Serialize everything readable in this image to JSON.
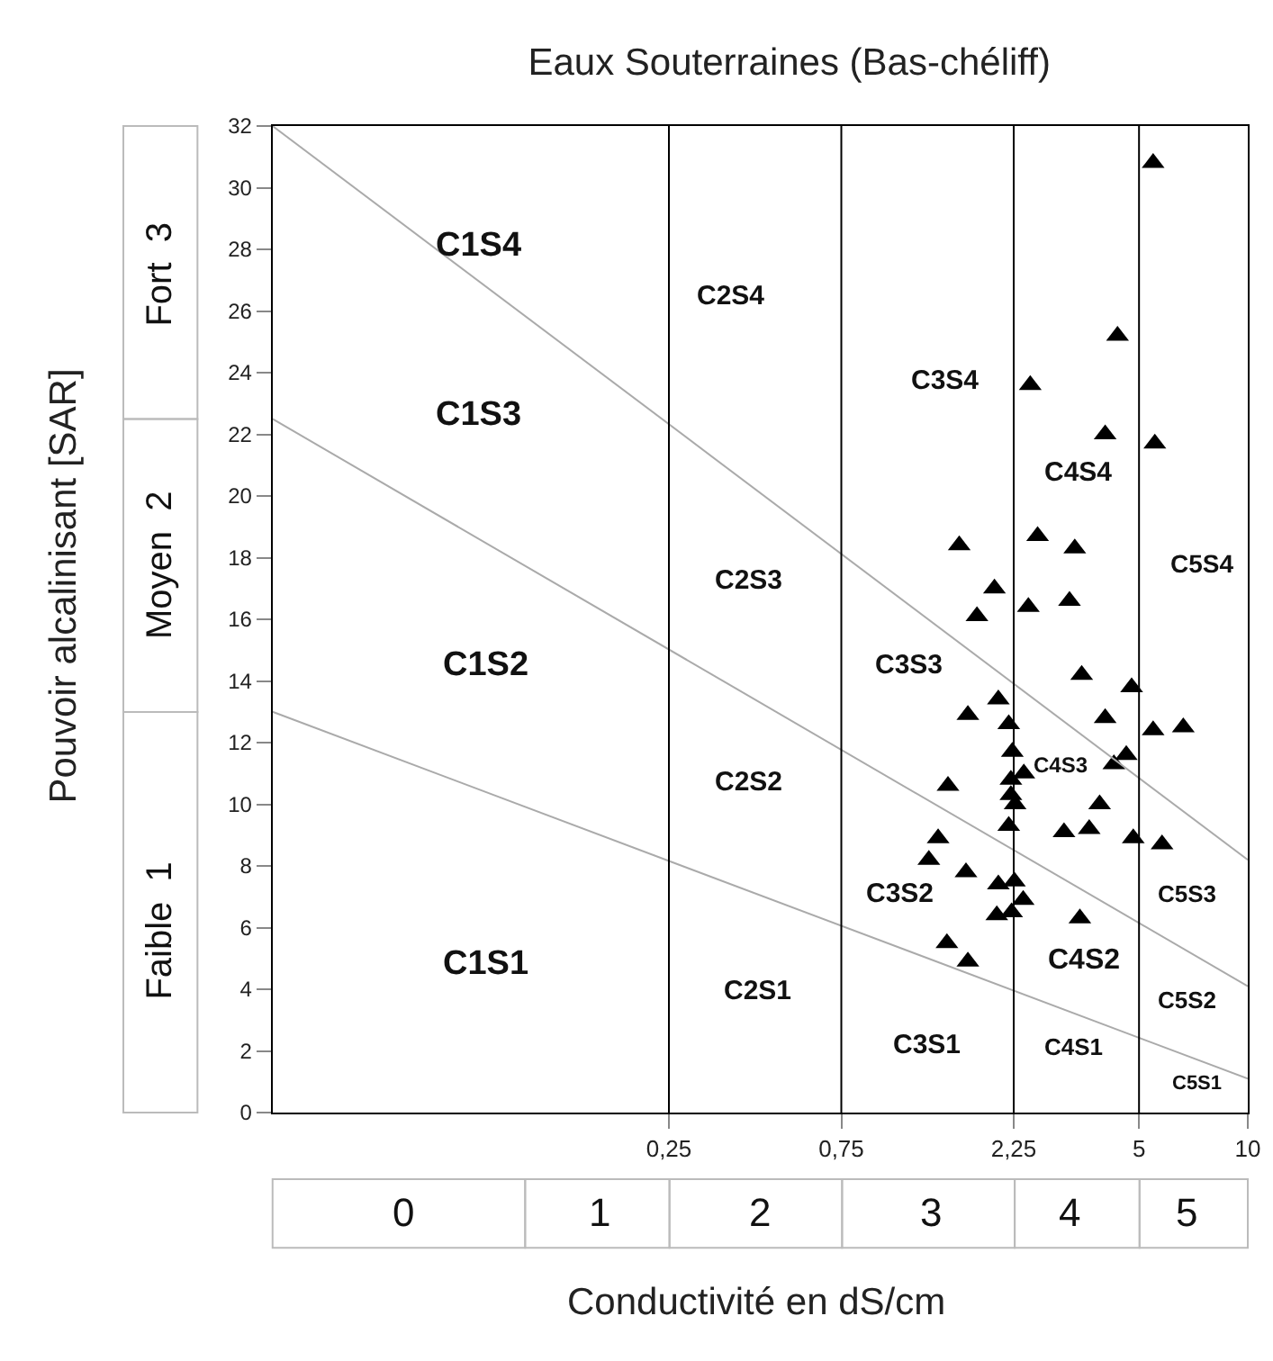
{
  "chart_data": {
    "type": "scatter",
    "title": "Eaux Souterraines (Bas-chéliff)",
    "xlabel": "Conductivité en dS/cm",
    "ylabel": "Pouvoir alcalinisant [SAR]",
    "log": "x",
    "xlim": [
      0.02,
      10
    ],
    "xticks": [
      {
        "value": 0.25,
        "label": "0,25"
      },
      {
        "value": 0.75,
        "label": "0,75"
      },
      {
        "value": 2.25,
        "label": "2,25"
      },
      5,
      10
    ],
    "ylim": [
      0,
      32
    ],
    "yticks": [
      0,
      2,
      4,
      6,
      8,
      10,
      12,
      14,
      16,
      18,
      20,
      22,
      24,
      26,
      28,
      30,
      32
    ],
    "grid": false,
    "series": [
      {
        "marker": "triangle",
        "color": "#000000",
        "x": [
          5.47,
          4.36,
          2.5,
          4.03,
          5.53,
          1.59,
          2.62,
          3.32,
          1.99,
          1.78,
          2.47,
          3.21,
          3.47,
          4.77,
          2.04,
          1.68,
          2.18,
          4.03,
          5.47,
          6.63,
          2.23,
          4.61,
          4.26,
          2.4,
          2.21,
          1.48,
          2.21,
          2.27,
          3.89,
          2.18,
          3.1,
          3.64,
          4.82,
          5.79,
          1.39,
          1.31,
          1.66,
          2.26,
          2.04,
          2.39,
          2.22,
          2.02,
          3.43,
          1.47,
          1.68
        ],
        "values": [
          30.8,
          25.2,
          23.6,
          22.0,
          21.7,
          18.4,
          18.7,
          18.3,
          17.0,
          16.1,
          16.4,
          16.6,
          14.2,
          13.8,
          13.4,
          12.9,
          12.6,
          12.8,
          12.4,
          12.5,
          11.7,
          11.6,
          11.3,
          11.0,
          10.8,
          10.6,
          10.3,
          10.0,
          10.0,
          9.3,
          9.1,
          9.2,
          8.9,
          8.7,
          8.9,
          8.2,
          7.8,
          7.5,
          7.4,
          6.9,
          6.5,
          6.4,
          6.3,
          5.5,
          4.9
        ]
      },
      {
        "type": "line",
        "color": "#aaaaaa",
        "x": [
          0.02,
          10
        ],
        "values": [
          32,
          8.2
        ]
      },
      {
        "type": "line",
        "color": "#aaaaaa",
        "x": [
          0.02,
          10
        ],
        "values": [
          22.5,
          4.1
        ]
      },
      {
        "type": "line",
        "color": "#aaaaaa",
        "x": [
          0.02,
          10
        ],
        "values": [
          13,
          1.1
        ]
      }
    ],
    "ref_lines": [
      {
        "axis": "x",
        "value": 0.25,
        "color": "#000000"
      },
      {
        "axis": "x",
        "value": 0.75,
        "color": "#000000"
      },
      {
        "axis": "x",
        "value": 2.25,
        "color": "#000000"
      },
      {
        "axis": "x",
        "value": 5,
        "color": "#000000"
      }
    ],
    "annotations": [
      "C1S4",
      "C1S3",
      "C1S2",
      "C1S1",
      "C2S4",
      "C2S3",
      "C2S2",
      "C2S1",
      "C3S4",
      "C3S3",
      "C3S2",
      "C3S1",
      "C4S4",
      "C4S3",
      "C4S2",
      "C4S1",
      "C5S4",
      "C5S3",
      "C5S2",
      "C5S1",
      "0",
      "1",
      "2",
      "3",
      "4",
      "5",
      "Faible  1",
      "Moyen  2",
      "Fort  3"
    ]
  }
}
